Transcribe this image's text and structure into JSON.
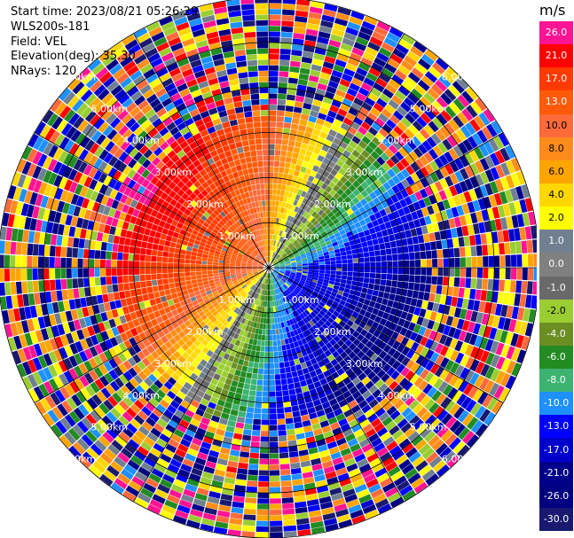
{
  "header": {
    "start_time": "Start time: 2023/08/21 05:26:29",
    "instrument": "WLS200s-181",
    "field": "Field: VEL",
    "elevation": "Elevation(deg): 35.30",
    "nrays": "NRays: 120"
  },
  "colorbar": {
    "unit": "m/s",
    "levels": [
      {
        "label": "26.0",
        "color": "#ff1493"
      },
      {
        "label": "21.0",
        "color": "#ff0000"
      },
      {
        "label": "17.0",
        "color": "#ff3a00"
      },
      {
        "label": "13.0",
        "color": "#ff5a0a"
      },
      {
        "label": "10.0",
        "color": "#ff6a3a"
      },
      {
        "label": "8.0",
        "color": "#ff8c1a"
      },
      {
        "label": "6.0",
        "color": "#ffa500"
      },
      {
        "label": "4.0",
        "color": "#ffd700"
      },
      {
        "label": "2.0",
        "color": "#ffff00"
      },
      {
        "label": "1.0",
        "color": "#708090"
      },
      {
        "label": "0.0",
        "color": "#808080"
      },
      {
        "label": "-1.0",
        "color": "#696969"
      },
      {
        "label": "-2.0",
        "color": "#9acd32"
      },
      {
        "label": "-4.0",
        "color": "#6b8e23"
      },
      {
        "label": "-6.0",
        "color": "#228b22"
      },
      {
        "label": "-8.0",
        "color": "#3cb371"
      },
      {
        "label": "-10.0",
        "color": "#1e90ff"
      },
      {
        "label": "-13.0",
        "color": "#0000ff"
      },
      {
        "label": "-17.0",
        "color": "#0000cd"
      },
      {
        "label": "-21.0",
        "color": "#00008b"
      },
      {
        "label": "-26.0",
        "color": "#000080"
      },
      {
        "label": "-30.0",
        "color": "#191970"
      }
    ]
  },
  "chart_data": {
    "type": "heatmap",
    "title": "",
    "nrays": 120,
    "elevation_deg": 35.3,
    "max_range_km": 6.0,
    "range_ring_labels": [
      "1.00km",
      "2.00km",
      "3.00km",
      "4.00km",
      "5.00km",
      "6.00km"
    ],
    "range_rings_km": [
      1,
      2,
      3,
      4,
      5,
      6
    ],
    "coherent_range_km": 3.8,
    "velocity_pattern": "approaching (negative, blue) from south-east, receding (positive, red) toward north-west, noisy random values beyond ~4 km"
  }
}
